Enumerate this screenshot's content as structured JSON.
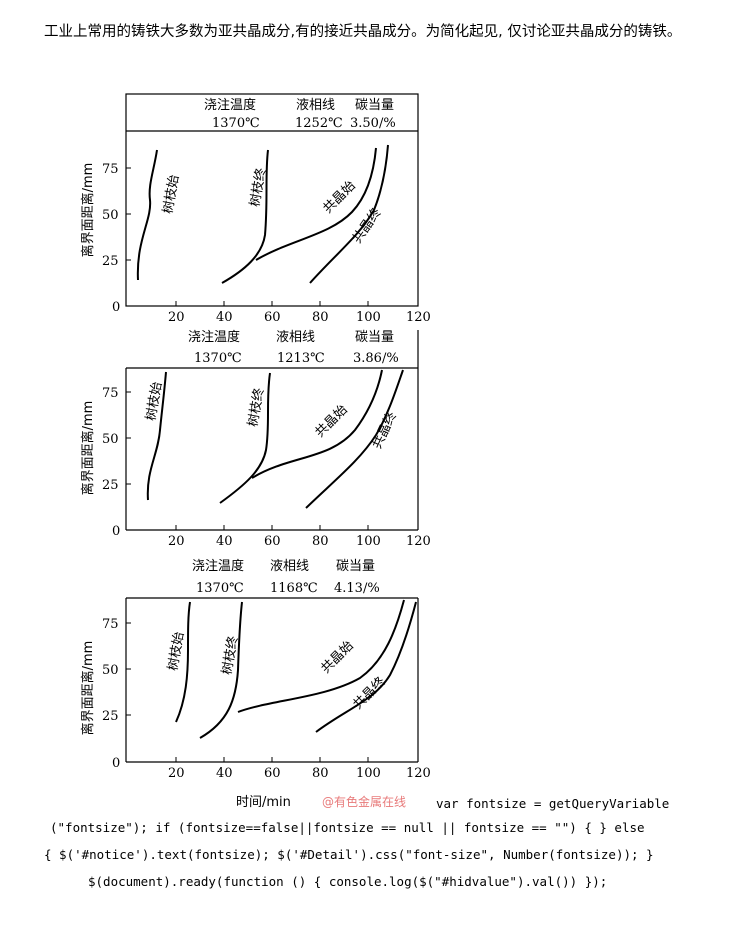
{
  "intro_text": "工业上常用的铸铁大多数为亚共晶成分,有的接近共晶成分。为简化起见, 仅讨论亚共晶成分的铸铁。",
  "panels": [
    {
      "header": {
        "col1": "浇注温度",
        "col2": "液相线",
        "col3": "碳当量",
        "v1": "1370℃",
        "v2": "1252℃",
        "v3": "3.50/%"
      },
      "curve_labels": {
        "a": "树枝始",
        "b": "树枝终",
        "c": "共晶始",
        "d": "共晶终"
      }
    },
    {
      "header": {
        "col1": "浇注温度",
        "col2": "液相线",
        "col3": "碳当量",
        "v1": "1370℃",
        "v2": "1213℃",
        "v3": "3.86/%"
      },
      "curve_labels": {
        "a": "树枝始",
        "b": "树枝终",
        "c": "共晶始",
        "d": "共晶终"
      }
    },
    {
      "header": {
        "col1": "浇注温度",
        "col2": "液相线",
        "col3": "碳当量",
        "v1": "1370℃",
        "v2": "1168℃",
        "v3": "4.13/%"
      },
      "curve_labels": {
        "a": "树枝始",
        "b": "树枝终",
        "c": "共晶始",
        "d": "共晶终"
      }
    }
  ],
  "y_axis_label": "离界面距离/mm",
  "x_axis_label": "时间/min",
  "y_ticks": [
    "75",
    "50",
    "25",
    "0"
  ],
  "x_ticks": [
    "20",
    "40",
    "60",
    "80",
    "100",
    "120"
  ],
  "watermark": "@有色金属在线",
  "code_lines": [
    "var fontsize = getQueryVariable",
    "(\"fontsize\"); if (fontsize==false||fontsize == null || fontsize == \"\") { } else",
    "{ $('#notice').text(fontsize); $('#Detail').css(\"font-size\", Number(fontsize)); }",
    "$(document).ready(function () { console.log($(\"#hidvalue\").val()) });"
  ]
}
